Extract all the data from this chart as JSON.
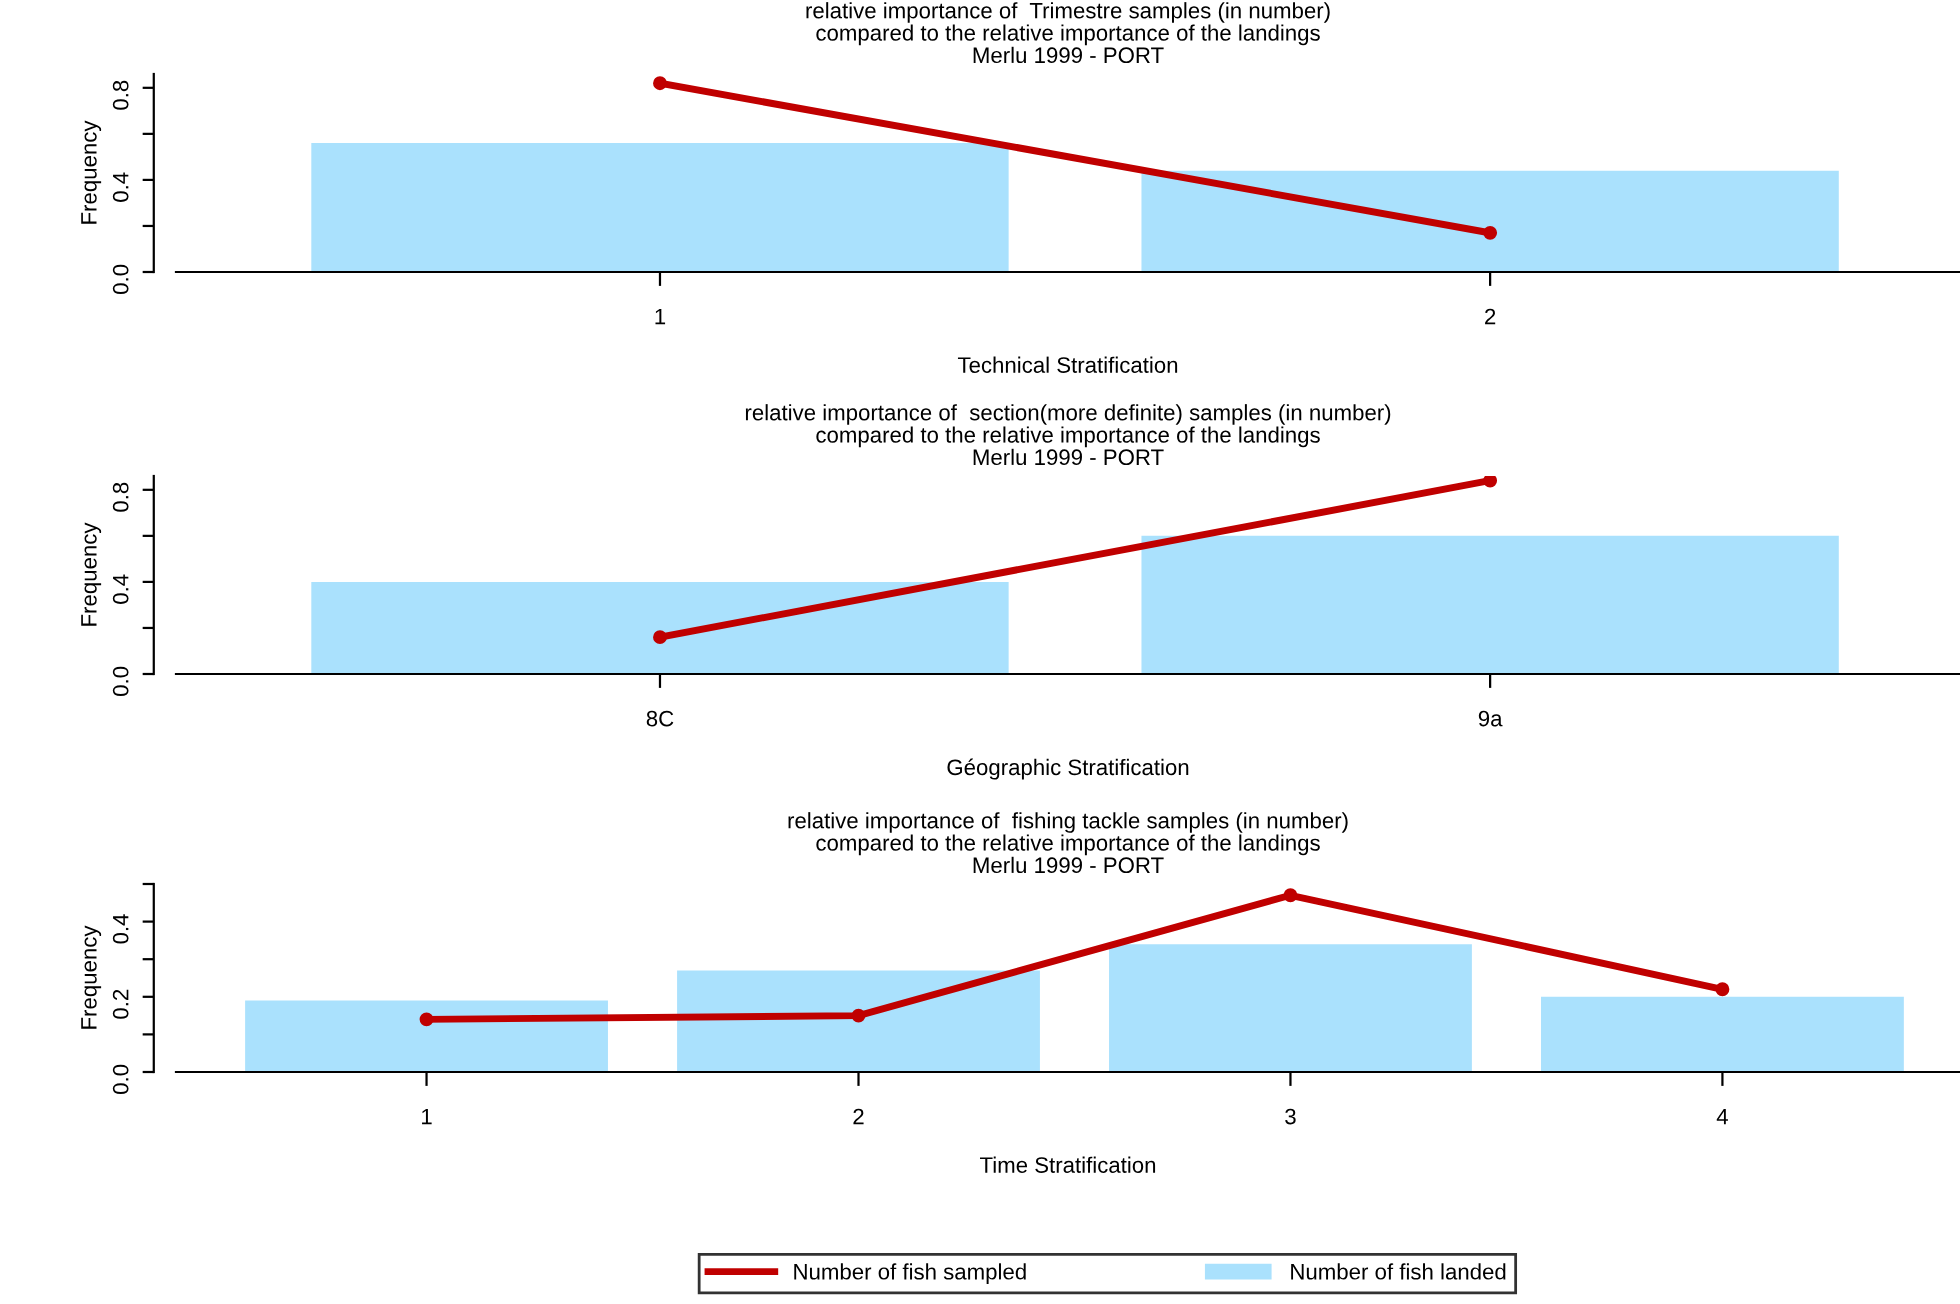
{
  "chart_data": [
    {
      "type": "bar",
      "title": "relative importance of  Trimestre samples (in number)\ncompared to the relative importance of the landings\nMerlu 1999 - PORT",
      "xlabel": "Technical Stratification",
      "ylabel": "Frequency",
      "categories": [
        "1",
        "2"
      ],
      "ylim": [
        0,
        0.86
      ],
      "yticks": [
        {
          "value": 0,
          "label": "0.0"
        },
        {
          "value": 0.2,
          "label": null
        },
        {
          "value": 0.4,
          "label": "0.4"
        },
        {
          "value": 0.6,
          "label": null
        },
        {
          "value": 0.8,
          "label": "0.8"
        }
      ],
      "grid": false,
      "series": [
        {
          "color": "#aae1fd",
          "values": [
            0.56,
            0.44
          ]
        },
        {
          "type": "line",
          "color": "#c00000",
          "marker": "circle",
          "values": [
            0.82,
            0.17
          ]
        }
      ]
    },
    {
      "type": "bar",
      "title": "relative importance of  section(more definite) samples (in number)\ncompared to the relative importance of the landings\nMerlu 1999 - PORT",
      "xlabel": "Géographic Stratification",
      "ylabel": "Frequency",
      "categories": [
        "8C",
        "9a"
      ],
      "ylim": [
        0,
        0.86
      ],
      "yticks": [
        {
          "value": 0,
          "label": "0.0"
        },
        {
          "value": 0.2,
          "label": null
        },
        {
          "value": 0.4,
          "label": "0.4"
        },
        {
          "value": 0.6,
          "label": null
        },
        {
          "value": 0.8,
          "label": "0.8"
        }
      ],
      "grid": false,
      "series": [
        {
          "color": "#aae1fd",
          "values": [
            0.4,
            0.6
          ]
        },
        {
          "type": "line",
          "color": "#c00000",
          "marker": "circle",
          "values": [
            0.16,
            0.84
          ]
        }
      ]
    },
    {
      "type": "bar",
      "title": "relative importance of  fishing tackle samples (in number)\ncompared to the relative importance of the landings\nMerlu 1999 - PORT",
      "xlabel": "Time Stratification",
      "ylabel": "Frequency",
      "categories": [
        "1",
        "2",
        "3",
        "4"
      ],
      "ylim": [
        0,
        0.5
      ],
      "yticks": [
        {
          "value": 0,
          "label": "0.0"
        },
        {
          "value": 0.1,
          "label": null
        },
        {
          "value": 0.2,
          "label": "0.2"
        },
        {
          "value": 0.3,
          "label": null
        },
        {
          "value": 0.4,
          "label": "0.4"
        },
        {
          "value": 0.5,
          "label": null
        }
      ],
      "grid": false,
      "legend": "bottom",
      "series": [
        {
          "name": "Number of fish landed",
          "color": "#aae1fd",
          "values": [
            0.19,
            0.27,
            0.34,
            0.2
          ]
        },
        {
          "name": "Number of fish sampled",
          "type": "line",
          "color": "#c00000",
          "marker": "circle",
          "values": [
            0.14,
            0.15,
            0.47,
            0.22
          ]
        }
      ]
    }
  ]
}
